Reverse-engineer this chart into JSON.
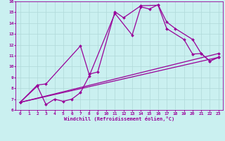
{
  "xlabel": "Windchill (Refroidissement éolien,°C)",
  "bg_color": "#caf0f0",
  "line_color": "#990099",
  "grid_color": "#b0d8d8",
  "xlim": [
    -0.5,
    23.5
  ],
  "ylim": [
    6,
    16
  ],
  "xticks": [
    0,
    1,
    2,
    3,
    4,
    5,
    6,
    7,
    8,
    9,
    10,
    11,
    12,
    13,
    14,
    15,
    16,
    17,
    18,
    19,
    20,
    21,
    22,
    23
  ],
  "yticks": [
    6,
    7,
    8,
    9,
    10,
    11,
    12,
    13,
    14,
    15,
    16
  ],
  "line1_x": [
    0,
    2,
    3,
    4,
    5,
    6,
    7,
    8,
    11,
    13,
    14,
    15,
    16,
    17,
    18,
    20,
    21,
    22,
    23
  ],
  "line1_y": [
    6.7,
    8.2,
    6.5,
    7.0,
    6.8,
    7.0,
    7.6,
    9.1,
    14.9,
    12.9,
    15.5,
    15.3,
    15.7,
    14.1,
    13.5,
    12.5,
    11.2,
    10.5,
    10.85
  ],
  "line2_x": [
    0,
    2,
    3,
    7,
    8,
    9,
    11,
    12,
    14,
    16,
    17,
    19,
    20,
    21,
    22,
    23
  ],
  "line2_y": [
    6.7,
    8.3,
    8.4,
    11.9,
    9.3,
    9.5,
    15.05,
    14.5,
    15.6,
    15.65,
    13.5,
    12.5,
    11.15,
    11.2,
    10.5,
    10.85
  ],
  "line3_x": [
    0,
    23
  ],
  "line3_y": [
    6.7,
    10.85
  ],
  "line4_x": [
    0,
    23
  ],
  "line4_y": [
    6.7,
    11.2
  ]
}
